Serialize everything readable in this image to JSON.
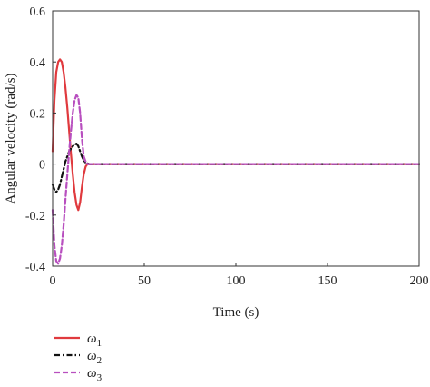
{
  "chart_data": {
    "type": "line",
    "xlabel": "Time (s)",
    "ylabel": "Angular velocity (rad/s)",
    "xlim": [
      0,
      200
    ],
    "ylim": [
      -0.4,
      0.6
    ],
    "xticks": [
      0,
      50,
      100,
      150,
      200
    ],
    "yticks": [
      -0.4,
      -0.2,
      0,
      0.2,
      0.4,
      0.6
    ],
    "grid": false,
    "legend_position": "below-left",
    "series": [
      {
        "name": "ω₁",
        "label_base": "ω",
        "label_sub": "1",
        "color": "#e03a3e",
        "style": "solid",
        "x": [
          0,
          1,
          2,
          3,
          4,
          5,
          6,
          7,
          8,
          9,
          10,
          11,
          12,
          13,
          14,
          15,
          16,
          17,
          18,
          19,
          20,
          22,
          25,
          30,
          200
        ],
        "y": [
          0.05,
          0.25,
          0.36,
          0.4,
          0.41,
          0.4,
          0.36,
          0.3,
          0.22,
          0.13,
          0.04,
          -0.04,
          -0.11,
          -0.16,
          -0.18,
          -0.15,
          -0.09,
          -0.04,
          -0.01,
          0.0,
          0.0,
          0.0,
          0.0,
          0.0,
          0.0
        ]
      },
      {
        "name": "ω₂",
        "label_base": "ω",
        "label_sub": "2",
        "color": "#111111",
        "style": "dashdot",
        "x": [
          0,
          1,
          2,
          3,
          4,
          5,
          6,
          7,
          8,
          9,
          10,
          11,
          12,
          13,
          14,
          15,
          16,
          17,
          18,
          20,
          22,
          25,
          30,
          200
        ],
        "y": [
          -0.08,
          -0.1,
          -0.11,
          -0.1,
          -0.08,
          -0.05,
          -0.02,
          0.01,
          0.03,
          0.05,
          0.06,
          0.07,
          0.075,
          0.08,
          0.07,
          0.05,
          0.03,
          0.015,
          0.005,
          0.0,
          0.0,
          0.0,
          0.0,
          0.0
        ]
      },
      {
        "name": "ω₃",
        "label_base": "ω",
        "label_sub": "3",
        "color": "#b84fbf",
        "style": "dashed",
        "x": [
          0,
          1,
          2,
          3,
          4,
          5,
          6,
          7,
          8,
          9,
          10,
          11,
          12,
          13,
          14,
          15,
          16,
          17,
          18,
          19,
          20,
          22,
          25,
          30,
          200
        ],
        "y": [
          -0.18,
          -0.32,
          -0.38,
          -0.39,
          -0.37,
          -0.32,
          -0.24,
          -0.14,
          -0.04,
          0.05,
          0.13,
          0.2,
          0.25,
          0.27,
          0.26,
          0.2,
          0.1,
          0.03,
          0.01,
          0.0,
          0.0,
          0.0,
          0.0,
          0.0,
          0.0
        ]
      }
    ]
  }
}
